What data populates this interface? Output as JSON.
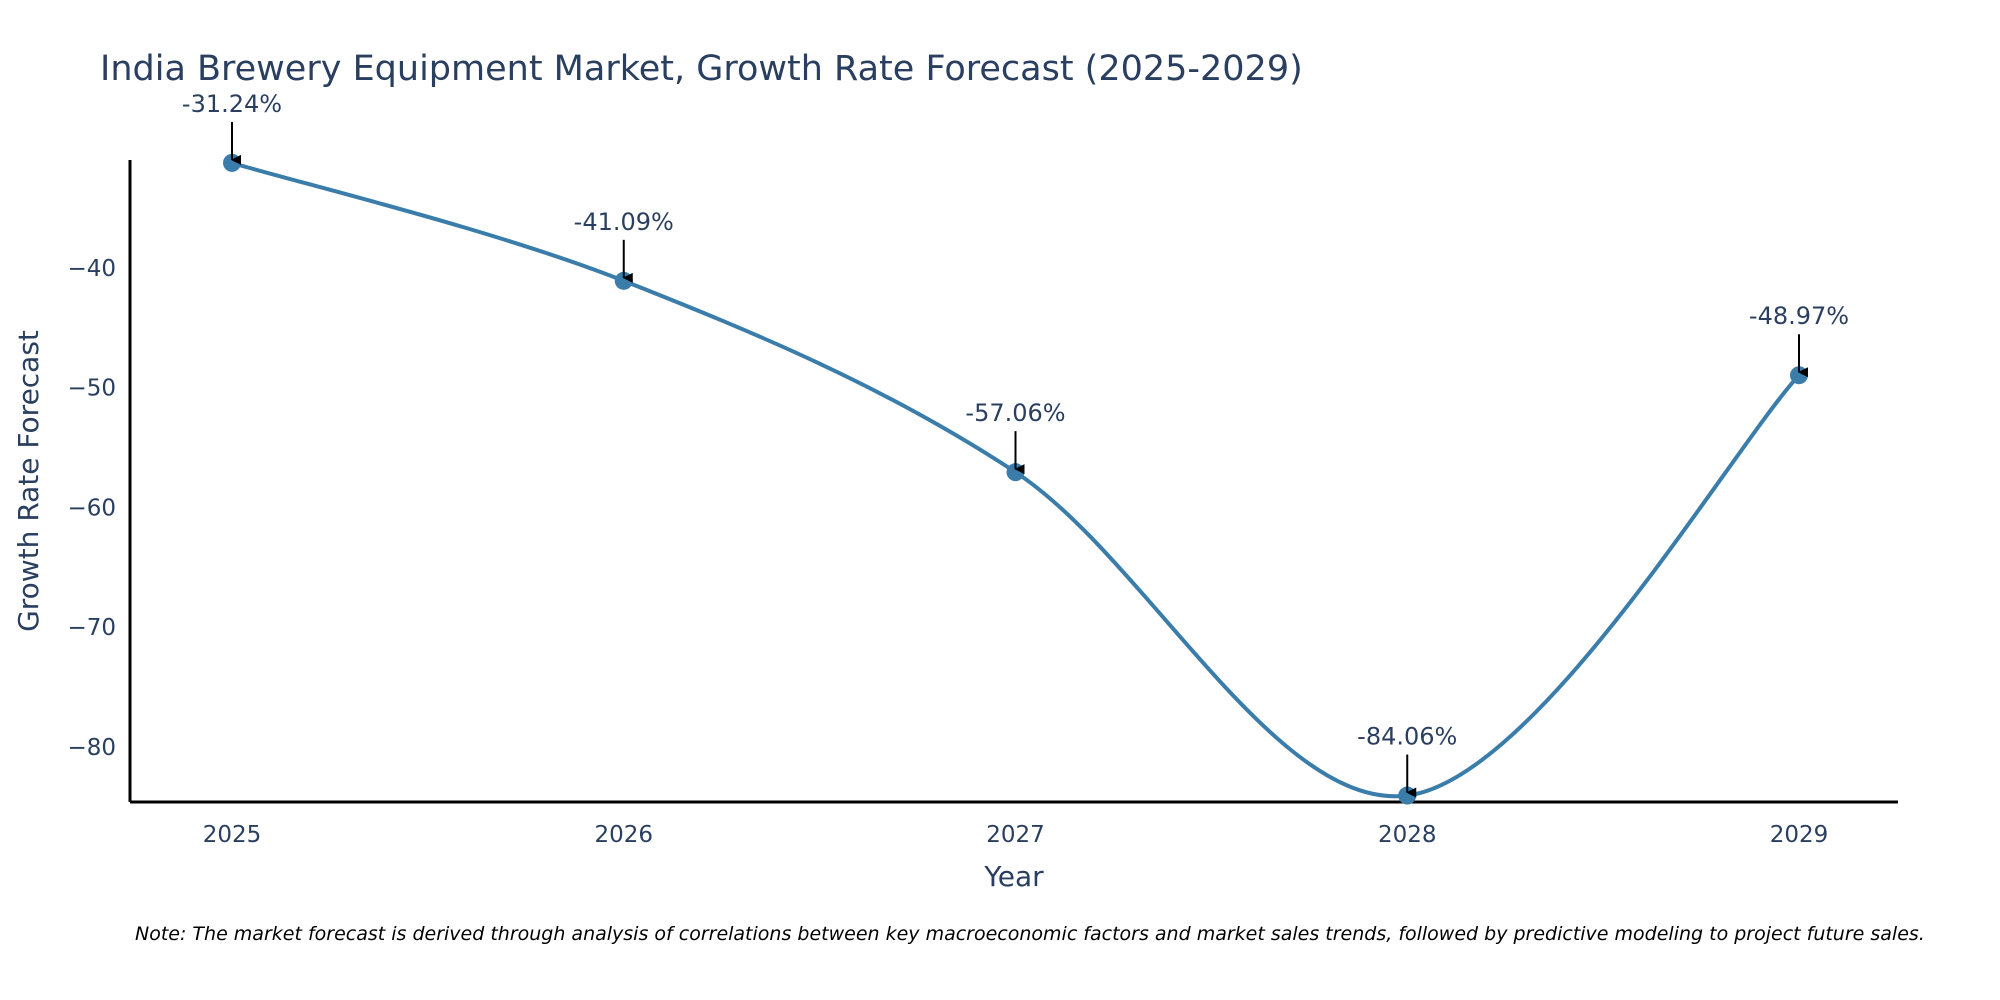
{
  "chart_data": {
    "type": "line",
    "title": "India Brewery Equipment Market, Growth Rate Forecast (2025-2029)",
    "xlabel": "Year",
    "ylabel": "Growth Rate Forecast",
    "categories": [
      "2025",
      "2026",
      "2027",
      "2028",
      "2029"
    ],
    "series": [
      {
        "name": "Growth Rate Forecast",
        "values": [
          -31.24,
          -41.09,
          -57.06,
          -84.06,
          -48.97
        ],
        "labels": [
          "-31.24%",
          "-41.09%",
          "-57.06%",
          "-84.06%",
          "-48.97%"
        ]
      }
    ],
    "y_ticks": [
      -40,
      -50,
      -60,
      -70,
      -80
    ],
    "y_tick_labels": [
      "−40",
      "−50",
      "−60",
      "−70",
      "−80"
    ],
    "ylim": [
      -84.6,
      -31.0
    ],
    "grid": false,
    "line_shape": "spline",
    "colors": {
      "line": "#3a7dab",
      "marker": "#3a7dab",
      "axis": "#000000",
      "text": "#2a3f5f",
      "arrow": "#000000"
    },
    "note": "Note: The market forecast is derived through analysis of correlations between key macroeconomic factors and market sales trends, followed by predictive modeling to project future sales."
  }
}
